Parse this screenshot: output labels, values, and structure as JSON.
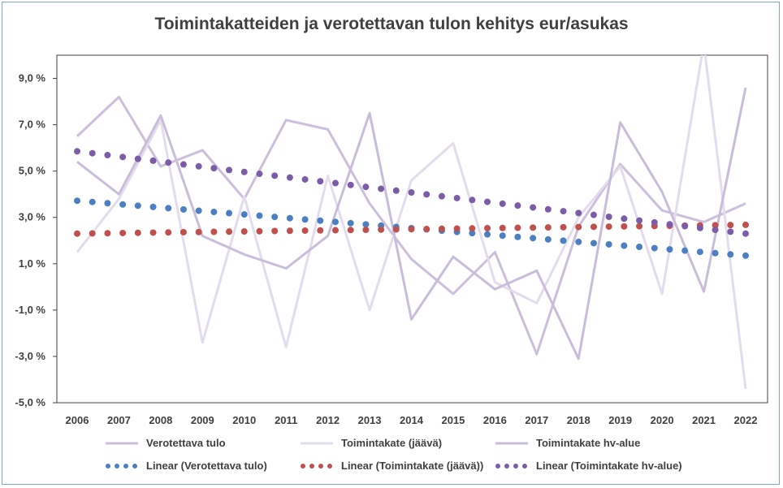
{
  "chart_data": {
    "type": "line",
    "title": "Toimintakatteiden ja verotettavan tulon kehitys eur/asukas",
    "xlabel": "",
    "ylabel": "",
    "ylim": [
      -5.0,
      10.0
    ],
    "y_ticks": [
      "9,0 %",
      "7,0 %",
      "5,0 %",
      "3,0 %",
      "1,0 %",
      "-1,0 %",
      "-3,0 %",
      "-5,0 %"
    ],
    "y_tick_values": [
      9,
      7,
      5,
      3,
      1,
      -1,
      -3,
      -5
    ],
    "x": [
      "2006",
      "2007",
      "2008",
      "2009",
      "2010",
      "2011",
      "2012",
      "2013",
      "2014",
      "2015",
      "2016",
      "2017",
      "2018",
      "2019",
      "2020",
      "2021",
      "2022"
    ],
    "series": [
      {
        "name": "Verotettava tulo",
        "style": "line",
        "color": "#cbbfdc",
        "values": [
          6.5,
          8.2,
          5.2,
          5.9,
          3.8,
          7.2,
          6.8,
          3.6,
          1.2,
          -0.3,
          1.5,
          -2.9,
          2.6,
          5.3,
          3.3,
          2.8,
          3.6
        ]
      },
      {
        "name": "Toimintakate (jäävä)",
        "style": "line",
        "color": "#e3dcec",
        "values": [
          1.5,
          3.8,
          7.2,
          -2.4,
          3.9,
          -2.6,
          4.8,
          -1.0,
          4.6,
          6.2,
          0.2,
          -0.7,
          3.0,
          5.2,
          -0.3,
          10.5,
          -4.4
        ]
      },
      {
        "name": "Toimintakate hv-alue",
        "style": "line",
        "color": "#c9bddb",
        "values": [
          5.4,
          4.0,
          7.4,
          2.2,
          1.4,
          0.8,
          2.2,
          7.5,
          -1.4,
          1.3,
          -0.1,
          0.7,
          -3.1,
          7.1,
          4.1,
          -0.2,
          8.6
        ]
      },
      {
        "name": "Linear (Verotettava tulo)",
        "style": "dots",
        "color": "#4a7fc1",
        "start": 3.72,
        "end": 1.35
      },
      {
        "name": "Linear (Toimintakate (jäävä))",
        "style": "dots",
        "color": "#c0504d",
        "start": 2.3,
        "end": 2.68
      },
      {
        "name": "Linear (Toimintakate hv-alue)",
        "style": "dots",
        "color": "#7c5ca8",
        "start": 5.85,
        "end": 2.3
      }
    ],
    "legend_position": "bottom",
    "grid": false
  },
  "colors": {
    "axis": "#404040",
    "plot_border": "#404040",
    "frame": "#7fa7b8"
  }
}
